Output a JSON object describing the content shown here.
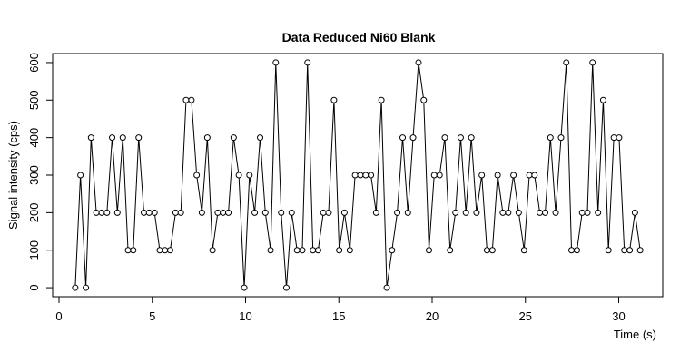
{
  "chart_data": {
    "type": "line",
    "title": "Data Reduced Ni60 Blank",
    "xlabel": "Time (s)",
    "ylabel": "Signal intensity (cps)",
    "xlim": [
      -0.34,
      32.36
    ],
    "ylim": [
      -24,
      624
    ],
    "xticks": [
      0,
      5,
      10,
      15,
      20,
      25,
      30
    ],
    "yticks": [
      0,
      100,
      200,
      300,
      400,
      500,
      600
    ],
    "color": "#000000",
    "markers": true,
    "x": [
      0.87,
      1.15,
      1.44,
      1.72,
      2.0,
      2.29,
      2.57,
      2.85,
      3.13,
      3.42,
      3.7,
      3.98,
      4.27,
      4.55,
      4.83,
      5.12,
      5.4,
      5.68,
      5.96,
      6.25,
      6.53,
      6.81,
      7.1,
      7.38,
      7.66,
      7.95,
      8.23,
      8.51,
      8.79,
      9.08,
      9.36,
      9.64,
      9.93,
      10.21,
      10.49,
      10.78,
      11.06,
      11.34,
      11.62,
      11.91,
      12.19,
      12.47,
      12.76,
      13.04,
      13.32,
      13.61,
      13.89,
      14.17,
      14.45,
      14.74,
      15.02,
      15.3,
      15.59,
      15.87,
      16.15,
      16.44,
      16.72,
      17.0,
      17.28,
      17.57,
      17.85,
      18.13,
      18.42,
      18.7,
      18.98,
      19.27,
      19.55,
      19.83,
      20.11,
      20.4,
      20.68,
      20.96,
      21.25,
      21.53,
      21.81,
      22.1,
      22.38,
      22.66,
      22.94,
      23.23,
      23.51,
      23.79,
      24.08,
      24.36,
      24.64,
      24.93,
      25.21,
      25.49,
      25.77,
      26.06,
      26.34,
      26.62,
      26.91,
      27.19,
      27.47,
      27.76,
      28.04,
      28.32,
      28.6,
      28.89,
      29.17,
      29.45,
      29.74,
      30.02,
      30.3,
      30.59,
      30.87,
      31.15
    ],
    "values": [
      0,
      300,
      0,
      400,
      200,
      200,
      200,
      400,
      200,
      400,
      100,
      100,
      400,
      200,
      200,
      200,
      100,
      100,
      100,
      200,
      200,
      500,
      500,
      300,
      200,
      400,
      100,
      200,
      200,
      200,
      400,
      300,
      0,
      300,
      200,
      400,
      200,
      100,
      600,
      200,
      0,
      200,
      100,
      100,
      600,
      100,
      100,
      200,
      200,
      500,
      100,
      200,
      100,
      300,
      300,
      300,
      300,
      200,
      500,
      0,
      100,
      200,
      400,
      200,
      400,
      600,
      500,
      100,
      300,
      300,
      400,
      100,
      200,
      400,
      200,
      400,
      200,
      300,
      100,
      100,
      300,
      200,
      200,
      300,
      200,
      100,
      300,
      300,
      200,
      200,
      400,
      200,
      400,
      600,
      100,
      100,
      200,
      200,
      600,
      200,
      500,
      100,
      400,
      400,
      100,
      100,
      200,
      100
    ]
  }
}
